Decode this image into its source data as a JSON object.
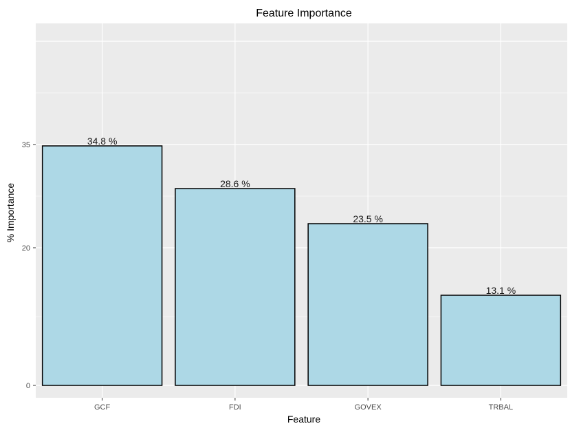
{
  "chart_data": {
    "type": "bar",
    "title": "Feature Importance",
    "xlabel": "Feature",
    "ylabel": "% Importance",
    "categories": [
      "GCF",
      "FDI",
      "GOVEX",
      "TRBAL"
    ],
    "values": [
      34.8,
      28.6,
      23.5,
      13.1
    ],
    "value_labels": [
      "34.8 %",
      "28.6 %",
      "23.5 %",
      "13.1 %"
    ],
    "yticks": [
      0,
      20,
      35
    ],
    "ylim": [
      -1.8,
      52.6
    ],
    "grid": true,
    "colors": {
      "bar_fill": "#add8e6",
      "bar_stroke": "#000000",
      "panel_bg": "#ebebeb",
      "grid": "#ffffff"
    }
  }
}
